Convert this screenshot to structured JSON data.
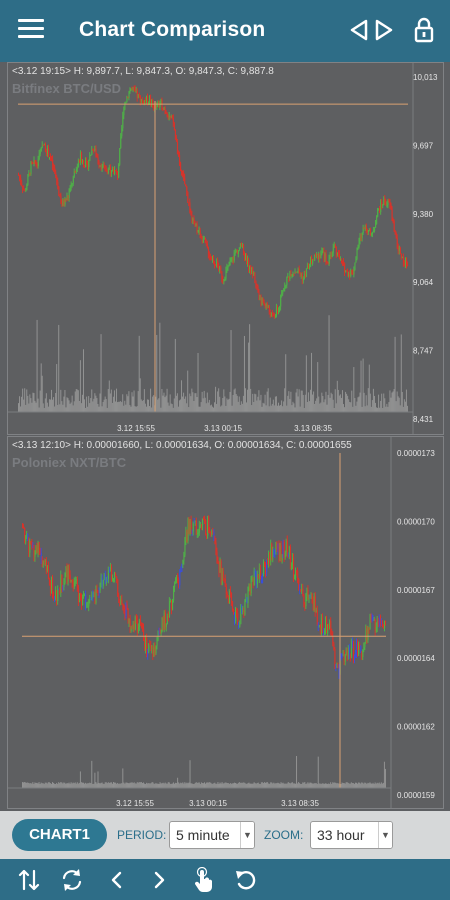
{
  "appbar": {
    "title": "Chart Comparison",
    "menu_icon": "hamburger-menu-icon",
    "nav_icons": [
      "triangle-left-icon",
      "triangle-right-icon"
    ],
    "lock_icon": "lock-icon"
  },
  "colors": {
    "appbar": "#2e6d87",
    "chart_bg": "#5e5f61",
    "up": "#4fb048",
    "down": "#d9332a",
    "crosshair": "#d9a172",
    "volume": "#a3a3a3",
    "chart_button": "#2e7892"
  },
  "chart1": {
    "info": "<3.12 19:15> H: 9,897.7, L: 9,847.3, O: 9,847.3, C: 9,887.8",
    "symbol": "Bitfinex BTC/USD",
    "y_ticks": [
      "10,013",
      "9,697",
      "9,380",
      "9,064",
      "8,747",
      "8,431"
    ],
    "x_ticks": [
      "3.12 15:55",
      "3.13 00:15",
      "3.13 08:35"
    ]
  },
  "chart2": {
    "info": "<3.13 12:10> H: 0.00001660, L: 0.00001634, O: 0.00001634, C: 0.00001655",
    "symbol": "Poloniex NXT/BTC",
    "y_ticks": [
      "0.0000173",
      "0.0000170",
      "0.0000167",
      "0.0000164",
      "0.0000162",
      "0.0000159"
    ],
    "x_ticks": [
      "3.12 15:55",
      "3.13 00:15",
      "3.13 08:35"
    ]
  },
  "toolbar": {
    "chart_button": "CHART1",
    "period_label": "PERIOD:",
    "period_value": "5 minute",
    "zoom_label": "ZOOM:",
    "zoom_value": "33 hour"
  },
  "bottombar": {
    "icons": [
      "swap-vertical-icon",
      "sync-icon",
      "chevron-left-icon",
      "chevron-right-icon",
      "touch-hand-icon",
      "refresh-icon"
    ]
  },
  "chart_data": [
    {
      "type": "candlestick",
      "title": "Bitfinex BTC/USD",
      "xlabel": "",
      "ylabel": "",
      "ylim": [
        8431,
        10013
      ],
      "x_tick_labels": [
        "3.12 15:55",
        "3.13 00:15",
        "3.13 08:35"
      ],
      "y_tick_labels": [
        "10,013",
        "9,697",
        "9,380",
        "9,064",
        "8,747",
        "8,431"
      ],
      "close_series_approx": [
        9560,
        9480,
        9600,
        9620,
        9700,
        9650,
        9550,
        9420,
        9460,
        9560,
        9640,
        9600,
        9690,
        9620,
        9580,
        9590,
        9560,
        9880,
        9960,
        9930,
        9900,
        9910,
        9870,
        9890,
        9850,
        9800,
        9600,
        9500,
        9350,
        9300,
        9250,
        9180,
        9150,
        9080,
        9140,
        9200,
        9230,
        9150,
        9100,
        8980,
        8960,
        8900,
        8940,
        9060,
        9110,
        9120,
        9080,
        9150,
        9180,
        9200,
        9160,
        9230,
        9160,
        9110,
        9110,
        9250,
        9330,
        9270,
        9390,
        9440,
        9420,
        9260,
        9160
      ],
      "crosshair": {
        "time": "3.12 19:15",
        "price": 9887.8
      }
    },
    {
      "type": "candlestick",
      "title": "Poloniex NXT/BTC",
      "xlabel": "",
      "ylabel": "",
      "ylim": [
        1.59e-05,
        1.73e-05
      ],
      "x_tick_labels": [
        "3.12 15:55",
        "3.13 00:15",
        "3.13 08:35"
      ],
      "y_tick_labels": [
        "0.0000173",
        "0.0000170",
        "0.0000167",
        "0.0000164",
        "0.0000162",
        "0.0000159"
      ],
      "close_series_approx": [
        1.7e-05,
        1.69e-05,
        1.69e-05,
        1.68e-05,
        1.67e-05,
        1.68e-05,
        1.68e-05,
        1.67e-05,
        1.67e-05,
        1.67e-05,
        1.68e-05,
        1.68e-05,
        1.67e-05,
        1.66e-05,
        1.66e-05,
        1.65e-05,
        1.65e-05,
        1.66e-05,
        1.67e-05,
        1.68e-05,
        1.7e-05,
        1.7e-05,
        1.7e-05,
        1.7e-05,
        1.68e-05,
        1.67e-05,
        1.66e-05,
        1.67e-05,
        1.68e-05,
        1.68e-05,
        1.69e-05,
        1.69e-05,
        1.69e-05,
        1.68e-05,
        1.67e-05,
        1.67e-05,
        1.66e-05,
        1.66e-05,
        1.64e-05,
        1.65e-05,
        1.65e-05,
        1.65e-05,
        1.66e-05,
        1.66e-05
      ],
      "crosshair": {
        "time": "3.13 12:10",
        "price": 1.655e-05
      }
    }
  ]
}
